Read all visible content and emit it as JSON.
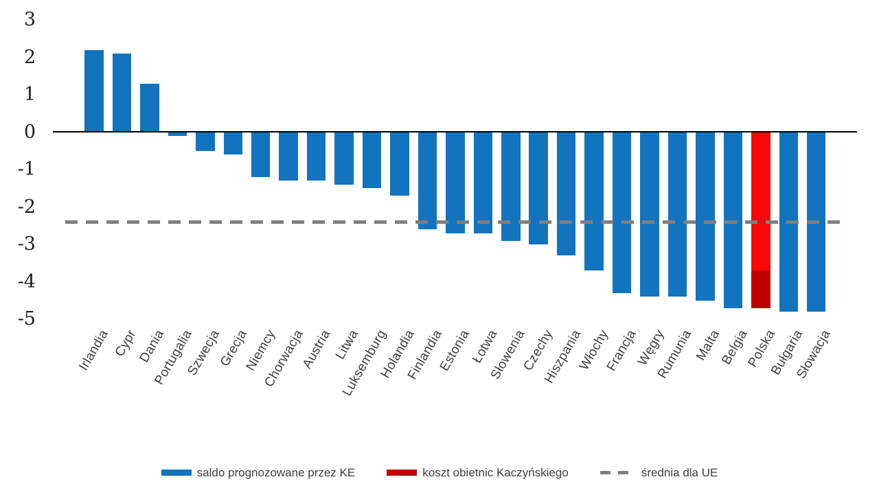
{
  "chart_data": {
    "type": "bar",
    "title": "",
    "xlabel": "",
    "ylabel": "",
    "grid": false,
    "legend_position": "bottom",
    "ylim": [
      -5,
      3
    ],
    "yticks": [
      3,
      2,
      1,
      0,
      -1,
      -2,
      -3,
      -4,
      -5
    ],
    "categories": [
      "Irlandia",
      "Cypr",
      "Dania",
      "Portugalia",
      "Szwecja",
      "Grecja",
      "Niemcy",
      "Chorwacja",
      "Austria",
      "Litwa",
      "Luksemburg",
      "Holandia",
      "Finlandia",
      "Estonia",
      "Łotwa",
      "Słowenia",
      "Czechy",
      "Hiszpania",
      "Włochy",
      "Francja",
      "Węgry",
      "Rumunia",
      "Malta",
      "Belgia",
      "Polska",
      "Bułgaria",
      "Słowacja"
    ],
    "series": [
      {
        "name": "saldo prognozowane przez KE",
        "color": "#1274BE",
        "values": [
          2.2,
          2.1,
          1.3,
          -0.1,
          -0.5,
          -0.6,
          -1.2,
          -1.3,
          -1.3,
          -1.4,
          -1.5,
          -1.7,
          -2.6,
          -2.7,
          -2.7,
          -2.9,
          -3.0,
          -3.3,
          -3.7,
          -4.3,
          -4.4,
          -4.4,
          -4.5,
          -4.7,
          -3.7,
          -4.8,
          -4.8
        ]
      },
      {
        "name": "koszt obietnic Kaczyńskiego",
        "color": "#C00000",
        "values": [
          0,
          0,
          0,
          0,
          0,
          0,
          0,
          0,
          0,
          0,
          0,
          0,
          0,
          0,
          0,
          0,
          0,
          0,
          0,
          0,
          0,
          0,
          0,
          0,
          -1.0,
          0,
          0
        ]
      }
    ],
    "highlight": {
      "category": "Polska",
      "base_color": "#FB0707"
    },
    "average_line": {
      "label": "średnia dla UE",
      "value": -2.4,
      "color": "#7F7F7F",
      "style": "dashed"
    }
  }
}
